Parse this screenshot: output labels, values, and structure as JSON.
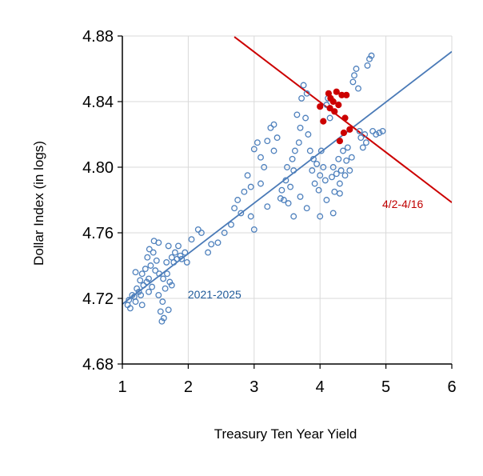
{
  "chart_data": {
    "type": "scatter",
    "title": "",
    "xlabel": "Treasury Ten Year Yield",
    "ylabel": "Dollar Index (in logs)",
    "xlim": [
      1,
      6
    ],
    "ylim": [
      4.68,
      4.88
    ],
    "x_ticks": [
      1,
      2,
      3,
      4,
      5,
      6
    ],
    "y_ticks": [
      4.68,
      4.72,
      4.76,
      4.8,
      4.84,
      4.88
    ],
    "x_tick_labels": [
      "1",
      "2",
      "3",
      "4",
      "5",
      "6"
    ],
    "y_tick_labels": [
      "4.68",
      "4.72",
      "4.76",
      "4.80",
      "4.84",
      "4.88"
    ],
    "grid": true,
    "legend": "none",
    "colors": {
      "series_2021_2025": "#4f81bd",
      "series_apr": "#cc0000",
      "fit_2021_2025": "#4a7ab7",
      "fit_apr": "#cc0000",
      "grid": "#d9d9d9"
    },
    "annotations": [
      {
        "text": "2021-2025",
        "x": 2.0,
        "y": 4.7225,
        "color": "#1f5a99"
      },
      {
        "text": "4/2-4/16",
        "x": 4.95,
        "y": 4.7775,
        "color": "#c00000"
      }
    ],
    "series": [
      {
        "name": "2021-2025",
        "marker": "hollow-circle",
        "values": [
          [
            1.08,
            4.716
          ],
          [
            1.1,
            4.719
          ],
          [
            1.12,
            4.714
          ],
          [
            1.15,
            4.722
          ],
          [
            1.18,
            4.721
          ],
          [
            1.2,
            4.718
          ],
          [
            1.22,
            4.726
          ],
          [
            1.25,
            4.724
          ],
          [
            1.27,
            4.731
          ],
          [
            1.28,
            4.722
          ],
          [
            1.3,
            4.735
          ],
          [
            1.32,
            4.728
          ],
          [
            1.35,
            4.738
          ],
          [
            1.37,
            4.73
          ],
          [
            1.38,
            4.745
          ],
          [
            1.4,
            4.732
          ],
          [
            1.41,
            4.75
          ],
          [
            1.43,
            4.74
          ],
          [
            1.45,
            4.727
          ],
          [
            1.47,
            4.748
          ],
          [
            1.48,
            4.755
          ],
          [
            1.5,
            4.737
          ],
          [
            1.52,
            4.743
          ],
          [
            1.55,
            4.722
          ],
          [
            1.56,
            4.735
          ],
          [
            1.58,
            4.712
          ],
          [
            1.6,
            4.706
          ],
          [
            1.61,
            4.718
          ],
          [
            1.63,
            4.708
          ],
          [
            1.65,
            4.726
          ],
          [
            1.67,
            4.742
          ],
          [
            1.68,
            4.735
          ],
          [
            1.7,
            4.752
          ],
          [
            1.72,
            4.73
          ],
          [
            1.75,
            4.745
          ],
          [
            1.78,
            4.742
          ],
          [
            1.8,
            4.748
          ],
          [
            1.83,
            4.744
          ],
          [
            1.85,
            4.752
          ],
          [
            1.88,
            4.746
          ],
          [
            1.9,
            4.744
          ],
          [
            1.95,
            4.748
          ],
          [
            1.98,
            4.742
          ],
          [
            2.05,
            4.756
          ],
          [
            2.15,
            4.762
          ],
          [
            2.2,
            4.76
          ],
          [
            2.3,
            4.748
          ],
          [
            2.35,
            4.753
          ],
          [
            2.45,
            4.754
          ],
          [
            2.55,
            4.76
          ],
          [
            2.65,
            4.765
          ],
          [
            2.7,
            4.775
          ],
          [
            2.75,
            4.78
          ],
          [
            2.8,
            4.772
          ],
          [
            2.85,
            4.785
          ],
          [
            2.9,
            4.795
          ],
          [
            2.95,
            4.788
          ],
          [
            3.0,
            4.811
          ],
          [
            3.05,
            4.815
          ],
          [
            3.1,
            4.806
          ],
          [
            3.15,
            4.8
          ],
          [
            3.2,
            4.816
          ],
          [
            3.25,
            4.824
          ],
          [
            3.3,
            4.826
          ],
          [
            3.35,
            4.818
          ],
          [
            3.4,
            4.781
          ],
          [
            3.42,
            4.786
          ],
          [
            3.45,
            4.78
          ],
          [
            3.48,
            4.792
          ],
          [
            3.5,
            4.8
          ],
          [
            3.52,
            4.778
          ],
          [
            3.55,
            4.788
          ],
          [
            3.58,
            4.805
          ],
          [
            3.6,
            4.798
          ],
          [
            3.62,
            4.81
          ],
          [
            3.65,
            4.832
          ],
          [
            3.68,
            4.815
          ],
          [
            3.7,
            4.824
          ],
          [
            3.72,
            4.842
          ],
          [
            3.75,
            4.85
          ],
          [
            3.78,
            4.83
          ],
          [
            3.8,
            4.845
          ],
          [
            3.82,
            4.82
          ],
          [
            3.85,
            4.81
          ],
          [
            3.88,
            4.798
          ],
          [
            3.9,
            4.805
          ],
          [
            3.92,
            4.79
          ],
          [
            3.95,
            4.802
          ],
          [
            3.98,
            4.786
          ],
          [
            4.0,
            4.795
          ],
          [
            4.02,
            4.81
          ],
          [
            4.05,
            4.8
          ],
          [
            4.08,
            4.792
          ],
          [
            4.1,
            4.838
          ],
          [
            4.12,
            4.842
          ],
          [
            4.15,
            4.83
          ],
          [
            4.18,
            4.794
          ],
          [
            4.2,
            4.8
          ],
          [
            4.22,
            4.785
          ],
          [
            4.25,
            4.796
          ],
          [
            4.28,
            4.805
          ],
          [
            4.3,
            4.79
          ],
          [
            4.32,
            4.798
          ],
          [
            4.35,
            4.81
          ],
          [
            4.38,
            4.795
          ],
          [
            4.4,
            4.804
          ],
          [
            4.42,
            4.812
          ],
          [
            4.45,
            4.798
          ],
          [
            4.48,
            4.806
          ],
          [
            4.5,
            4.852
          ],
          [
            4.52,
            4.856
          ],
          [
            4.55,
            4.86
          ],
          [
            4.58,
            4.848
          ],
          [
            4.6,
            4.822
          ],
          [
            4.62,
            4.818
          ],
          [
            4.65,
            4.812
          ],
          [
            4.68,
            4.82
          ],
          [
            4.7,
            4.815
          ],
          [
            4.72,
            4.862
          ],
          [
            4.75,
            4.866
          ],
          [
            4.78,
            4.868
          ],
          [
            4.8,
            4.822
          ],
          [
            4.85,
            4.82
          ],
          [
            4.9,
            4.821
          ],
          [
            4.95,
            4.822
          ],
          [
            3.3,
            4.81
          ],
          [
            3.1,
            4.79
          ],
          [
            3.2,
            4.776
          ],
          [
            2.95,
            4.77
          ],
          [
            3.0,
            4.762
          ],
          [
            3.6,
            4.77
          ],
          [
            3.7,
            4.782
          ],
          [
            3.8,
            4.775
          ],
          [
            4.0,
            4.77
          ],
          [
            4.1,
            4.78
          ],
          [
            4.2,
            4.772
          ],
          [
            4.3,
            4.784
          ],
          [
            1.2,
            4.736
          ],
          [
            1.3,
            4.716
          ],
          [
            1.4,
            4.724
          ],
          [
            1.55,
            4.754
          ],
          [
            1.62,
            4.732
          ],
          [
            1.7,
            4.713
          ],
          [
            1.75,
            4.728
          ]
        ]
      },
      {
        "name": "4/2-4/16",
        "marker": "filled-circle",
        "values": [
          [
            4.0,
            4.837
          ],
          [
            4.05,
            4.828
          ],
          [
            4.13,
            4.845
          ],
          [
            4.16,
            4.842
          ],
          [
            4.2,
            4.84
          ],
          [
            4.22,
            4.834
          ],
          [
            4.25,
            4.846
          ],
          [
            4.28,
            4.838
          ],
          [
            4.3,
            4.816
          ],
          [
            4.33,
            4.844
          ],
          [
            4.36,
            4.821
          ],
          [
            4.38,
            4.83
          ],
          [
            4.4,
            4.844
          ],
          [
            4.45,
            4.823
          ],
          [
            4.15,
            4.836
          ]
        ]
      }
    ],
    "fit_lines": [
      {
        "name": "2021-2025 fit",
        "x": [
          1.0,
          6.0
        ],
        "y": [
          4.7165,
          4.8705
        ]
      },
      {
        "name": "4/2-4/16 fit",
        "x": [
          2.7,
          6.0
        ],
        "y": [
          4.8795,
          4.7785
        ]
      }
    ]
  }
}
